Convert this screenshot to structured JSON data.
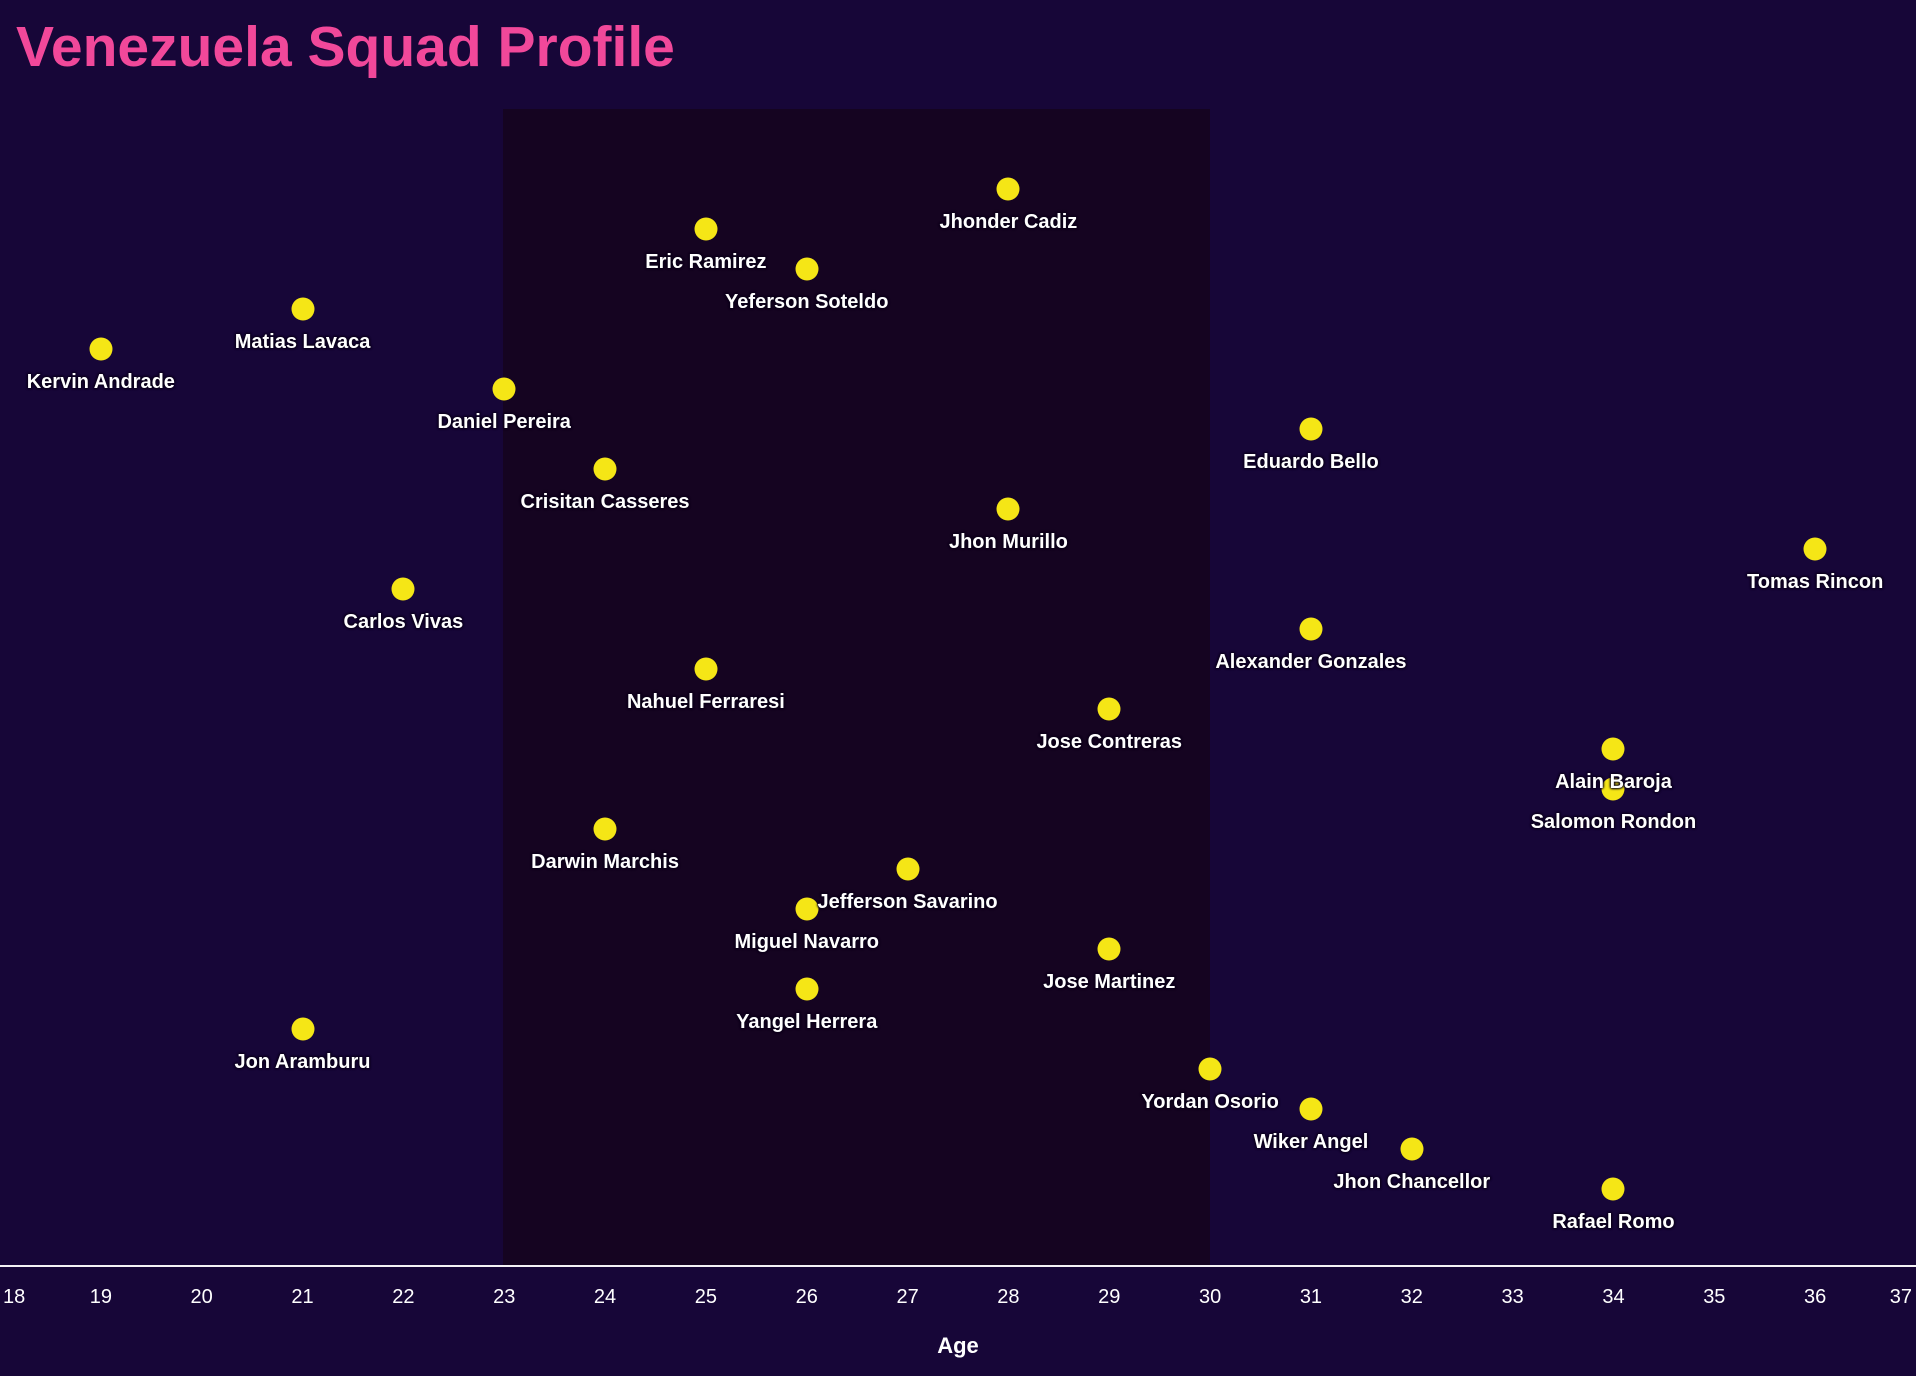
{
  "title": "Venezuela Squad Profile",
  "colors": {
    "background": "#170638",
    "highlight_band": "#150421",
    "dot": "#f5e616",
    "title_pink": "#f1489a",
    "label_text": "#ffffff",
    "axis_line": "#f4f2f6"
  },
  "chart_data": {
    "type": "scatter",
    "title": "Venezuela Squad Profile",
    "xlabel": "Age",
    "ylabel": "",
    "xlim": [
      18,
      37
    ],
    "x_ticks": [
      18,
      19,
      20,
      21,
      22,
      23,
      24,
      25,
      26,
      27,
      28,
      29,
      30,
      31,
      32,
      33,
      34,
      35,
      36,
      37
    ],
    "grid": false,
    "legend": false,
    "highlight_band": {
      "x_start": 23,
      "x_end": 30
    },
    "row_order": "players listed top to bottom, one row each",
    "players": [
      {
        "name": "Jhonder Cadiz",
        "age": 28
      },
      {
        "name": "Eric Ramirez",
        "age": 25
      },
      {
        "name": "Yeferson Soteldo",
        "age": 26
      },
      {
        "name": "Matias Lavaca",
        "age": 21
      },
      {
        "name": "Kervin Andrade",
        "age": 19
      },
      {
        "name": "Daniel Pereira",
        "age": 23
      },
      {
        "name": "Eduardo Bello",
        "age": 31
      },
      {
        "name": "Crisitan Casseres",
        "age": 24
      },
      {
        "name": "Jhon Murillo",
        "age": 28
      },
      {
        "name": "Tomas Rincon",
        "age": 36
      },
      {
        "name": "Carlos Vivas",
        "age": 22
      },
      {
        "name": "Alexander Gonzales",
        "age": 31
      },
      {
        "name": "Nahuel Ferraresi",
        "age": 25
      },
      {
        "name": "Jose Contreras",
        "age": 29
      },
      {
        "name": "Alain Baroja",
        "age": 34
      },
      {
        "name": "Salomon Rondon",
        "age": 34
      },
      {
        "name": "Darwin Marchis",
        "age": 24
      },
      {
        "name": "Jefferson Savarino",
        "age": 27
      },
      {
        "name": "Miguel Navarro",
        "age": 26
      },
      {
        "name": "Jose Martinez",
        "age": 29
      },
      {
        "name": "Yangel Herrera",
        "age": 26
      },
      {
        "name": "Jon Aramburu",
        "age": 21
      },
      {
        "name": "Yordan Osorio",
        "age": 30
      },
      {
        "name": "Wiker Angel",
        "age": 31
      },
      {
        "name": "Jhon Chancellor",
        "age": 32
      },
      {
        "name": "Rafael Romo",
        "age": 34
      }
    ]
  }
}
